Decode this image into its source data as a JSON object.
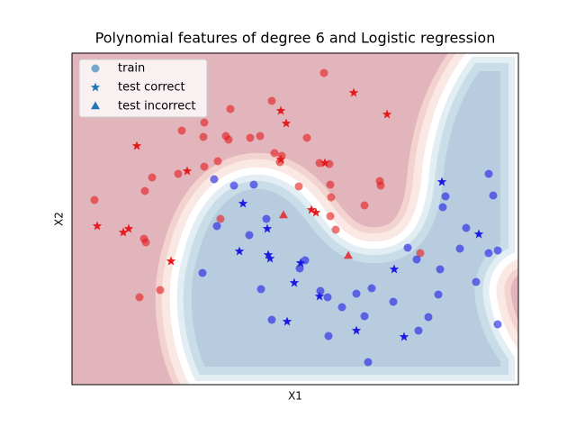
{
  "chart_data": {
    "type": "scatter",
    "title": "Polynomial features of degree 6 and Logistic regression",
    "xlabel": "X1",
    "ylabel": "X2",
    "xlim": [
      0,
      496
    ],
    "ylim": [
      0,
      368
    ],
    "class_colors": [
      "#e41a1c",
      "#1a1ae4"
    ],
    "legend_color": "#1f77b4",
    "legend": "upper left",
    "series": [
      {
        "name": "train",
        "marker": "circle",
        "alpha": 0.6,
        "x": [
          280,
          222,
          176,
          147,
          122,
          146,
          171,
          174,
          198,
          209,
          261,
          225,
          233,
          231,
          275,
          286,
          162,
          147,
          118,
          89,
          81,
          25,
          252,
          287,
          288,
          325,
          342,
          343,
          287,
          165,
          80,
          82,
          98,
          75,
          293,
          387,
          463,
          468,
          158,
          180,
          202,
          415,
          412,
          216,
          161,
          197,
          438,
          431,
          473,
          463,
          373,
          383,
          259,
          253,
          409,
          145,
          210,
          276,
          333,
          316,
          284,
          407,
          449,
          357,
          300,
          325,
          222,
          396,
          473,
          385,
          285,
          329
        ],
        "values": [
          346,
          315,
          306,
          291,
          282,
          275,
          276,
          272,
          274,
          276,
          274,
          257,
          254,
          247,
          246,
          245,
          248,
          242,
          234,
          230,
          215,
          205,
          220,
          222,
          208,
          199,
          226,
          221,
          187,
          184,
          162,
          158,
          105,
          97,
          172,
          146,
          234,
          210,
          228,
          221,
          222,
          209,
          197,
          184,
          176,
          166,
          174,
          151,
          149,
          146,
          152,
          139,
          138,
          129,
          128,
          124,
          106,
          104,
          107,
          101,
          97,
          100,
          114,
          92,
          86,
          76,
          72,
          75,
          67,
          60,
          54,
          25
        ],
        "classes": [
          0,
          0,
          0,
          0,
          0,
          0,
          0,
          0,
          0,
          0,
          0,
          0,
          0,
          0,
          0,
          0,
          0,
          0,
          0,
          0,
          0,
          0,
          0,
          0,
          0,
          0,
          0,
          0,
          0,
          0,
          0,
          0,
          0,
          0,
          0,
          0,
          1,
          1,
          1,
          1,
          1,
          1,
          1,
          1,
          1,
          1,
          1,
          1,
          1,
          1,
          1,
          1,
          1,
          1,
          1,
          1,
          1,
          1,
          1,
          1,
          1,
          1,
          1,
          1,
          1,
          1,
          1,
          1,
          1,
          1,
          1,
          1
        ]
      },
      {
        "name": "test correct",
        "marker": "star",
        "alpha": 1,
        "x": [
          313,
          232,
          350,
          238,
          72,
          128,
          281,
          232,
          28,
          63,
          57,
          110,
          266,
          271,
          411,
          190,
          217,
          452,
          186,
          218,
          220,
          254,
          358,
          247,
          275,
          239,
          316,
          369
        ],
        "values": [
          324,
          304,
          300,
          290,
          265,
          237,
          246,
          250,
          176,
          173,
          169,
          137,
          194,
          191,
          225,
          201,
          173,
          167,
          148,
          144,
          140,
          135,
          128,
          113,
          98,
          70,
          60,
          53
        ],
        "classes": [
          0,
          0,
          0,
          0,
          0,
          0,
          0,
          0,
          0,
          0,
          0,
          0,
          0,
          0,
          1,
          1,
          1,
          1,
          1,
          1,
          1,
          1,
          1,
          1,
          1,
          1,
          1,
          1
        ]
      },
      {
        "name": "test incorrect",
        "marker": "triangle",
        "alpha": 0.8,
        "x": [
          235,
          307
        ],
        "values": [
          188,
          143
        ],
        "classes": [
          0,
          0
        ]
      }
    ]
  }
}
